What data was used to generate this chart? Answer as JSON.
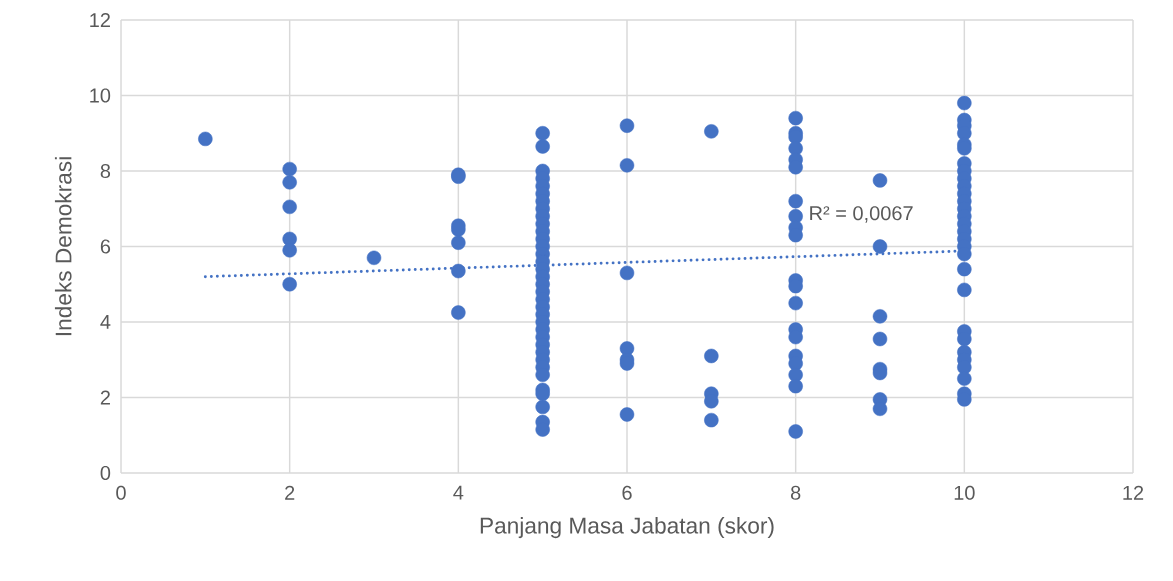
{
  "chart_data": {
    "type": "scatter",
    "xlabel": "Panjang Masa Jabatan (skor)",
    "ylabel": "Indeks Demokrasi",
    "xlim": [
      0,
      12
    ],
    "ylim": [
      0,
      12
    ],
    "xticks": [
      0,
      2,
      4,
      6,
      8,
      10,
      12
    ],
    "yticks": [
      0,
      2,
      4,
      6,
      8,
      10,
      12
    ],
    "grid": true,
    "series": [
      {
        "color": "#4472c4",
        "marker": "circle",
        "x": [
          1,
          2,
          2,
          2,
          2,
          2,
          2,
          3,
          4,
          4,
          4,
          4,
          4,
          4,
          4,
          5,
          5,
          5,
          5,
          5,
          5,
          5,
          5,
          5,
          5,
          5,
          5,
          5,
          5,
          5,
          5,
          5,
          5,
          5,
          5,
          5,
          5,
          5,
          5,
          5,
          5,
          5,
          5,
          5,
          5,
          5,
          5,
          5,
          5,
          5,
          6,
          6,
          6,
          6,
          6,
          6,
          6,
          7,
          7,
          7,
          7,
          7,
          8,
          8,
          8,
          8,
          8,
          8,
          8,
          8,
          8,
          8,
          8,
          8,
          8,
          8,
          8,
          8,
          8,
          8,
          8,
          8,
          9,
          9,
          9,
          9,
          9,
          9,
          9,
          9,
          10,
          10,
          10,
          10,
          10,
          10,
          10,
          10,
          10,
          10,
          10,
          10,
          10,
          10,
          10,
          10,
          10,
          10,
          10,
          10,
          10,
          10,
          10,
          10,
          10,
          10,
          10,
          10,
          10
        ],
        "values": [
          8.85,
          8.05,
          7.7,
          7.05,
          6.2,
          5.9,
          5.0,
          5.7,
          7.9,
          7.85,
          6.55,
          6.45,
          6.1,
          5.35,
          4.25,
          9.0,
          8.65,
          8.0,
          7.8,
          7.6,
          7.4,
          7.2,
          7.0,
          6.8,
          6.6,
          6.4,
          6.2,
          6.0,
          5.8,
          5.6,
          5.4,
          5.2,
          5.0,
          4.8,
          4.6,
          4.4,
          4.2,
          4.0,
          3.8,
          3.6,
          3.4,
          3.2,
          3.0,
          2.8,
          2.6,
          2.2,
          2.1,
          1.75,
          1.35,
          1.15,
          9.2,
          8.15,
          5.3,
          3.3,
          3.0,
          2.9,
          1.55,
          9.05,
          3.1,
          2.1,
          1.9,
          1.4,
          9.4,
          9.0,
          8.9,
          8.6,
          8.3,
          8.1,
          7.2,
          6.8,
          6.5,
          6.3,
          5.1,
          4.95,
          4.5,
          3.8,
          3.6,
          3.1,
          2.9,
          2.6,
          2.3,
          1.1,
          7.75,
          6.0,
          4.15,
          3.55,
          2.75,
          2.65,
          1.95,
          1.7,
          9.8,
          9.35,
          9.2,
          9.0,
          8.7,
          8.6,
          8.2,
          8.0,
          7.8,
          7.6,
          7.4,
          7.2,
          7.0,
          6.8,
          6.6,
          6.4,
          6.2,
          6.0,
          5.8,
          5.4,
          4.85,
          3.75,
          3.55,
          3.2,
          3.0,
          2.8,
          2.5,
          2.1,
          1.95
        ]
      },
      {
        "type": "line",
        "color": "#4472c4",
        "marker": "none",
        "line_style": "dotted",
        "x": [
          1,
          10
        ],
        "values": [
          5.2,
          5.88
        ]
      }
    ],
    "annotations": [
      "R² = 0,0067"
    ]
  }
}
